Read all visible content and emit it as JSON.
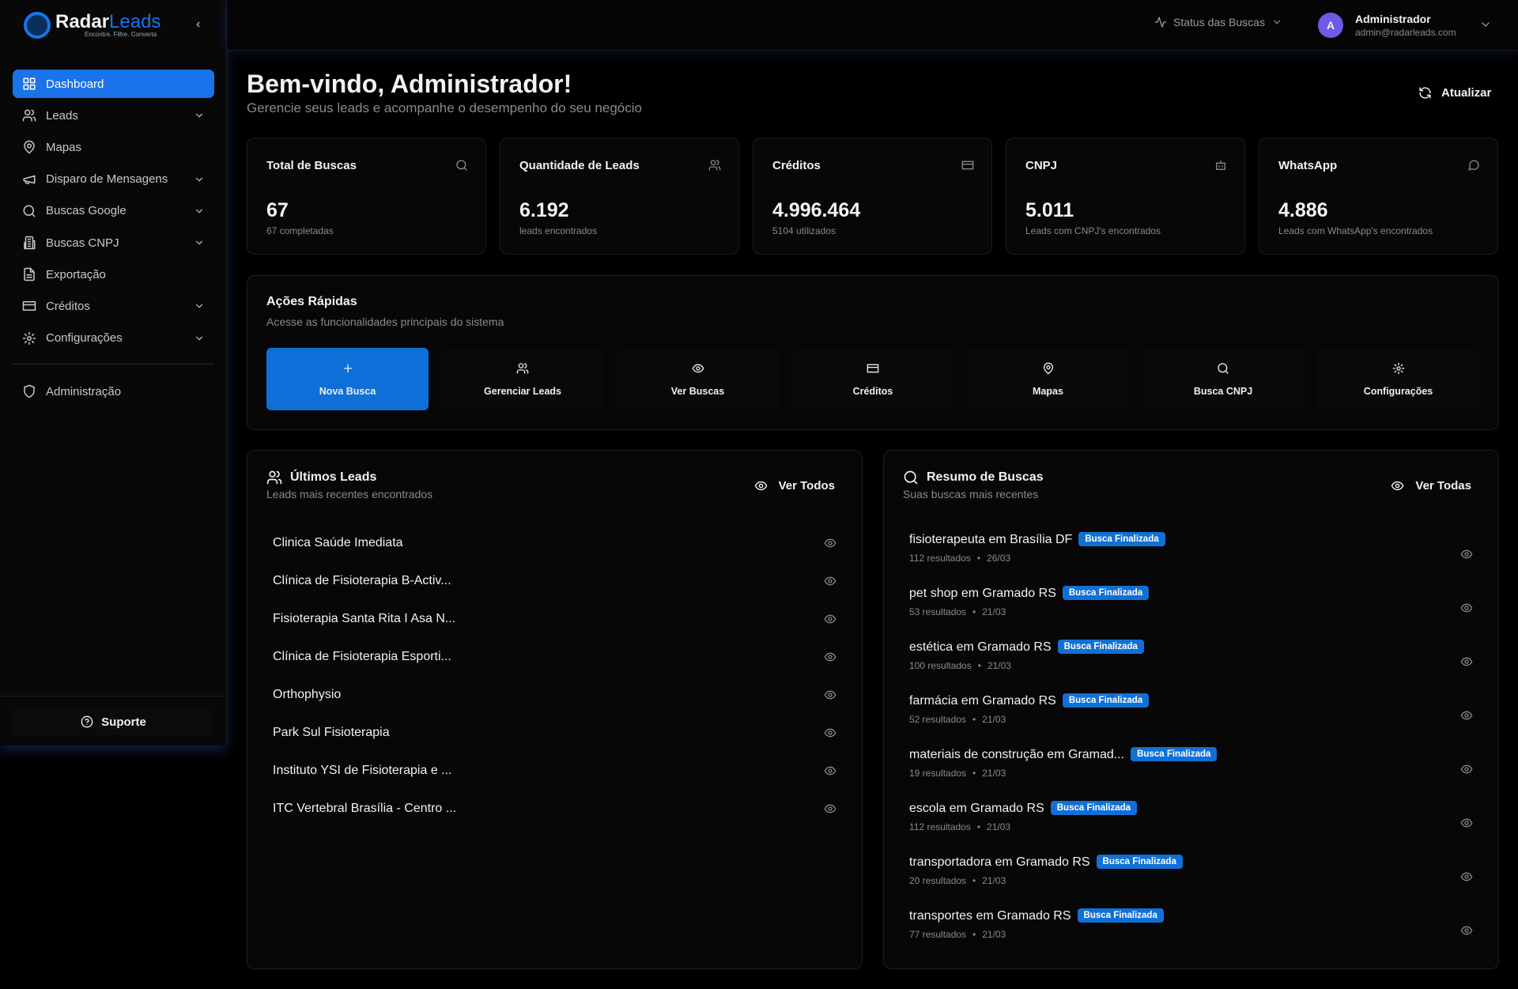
{
  "brand": {
    "name_a": "Radar",
    "name_b": "Leads",
    "tagline": "Encontre. Filtre. Converta"
  },
  "sidebar": {
    "items": [
      "Dashboard",
      "Leads",
      "Mapas",
      "Disparo de Mensagens",
      "Buscas Google",
      "Buscas CNPJ",
      "Exportação",
      "Créditos",
      "Configurações"
    ],
    "admin": "Administração",
    "support": "Suporte"
  },
  "header": {
    "status": "Status das Buscas",
    "user_initial": "A",
    "user_name": "Administrador",
    "user_email": "admin@radarleads.com"
  },
  "welcome": {
    "title": "Bem-vindo, Administrador!",
    "subtitle": "Gerencie seus leads e acompanhe o desempenho do seu negócio",
    "refresh": "Atualizar"
  },
  "stats": [
    {
      "label": "Total de Buscas",
      "value": "67",
      "note": "67 completadas"
    },
    {
      "label": "Quantidade de Leads",
      "value": "6.192",
      "note": "leads encontrados"
    },
    {
      "label": "Créditos",
      "value": "4.996.464",
      "note": "5104 utilizados"
    },
    {
      "label": "CNPJ",
      "value": "5.011",
      "note": "Leads com CNPJ's encontrados"
    },
    {
      "label": "WhatsApp",
      "value": "4.886",
      "note": "Leads com WhatsApp's encontrados"
    }
  ],
  "quick_actions": {
    "title": "Ações Rápidas",
    "subtitle": "Acesse as funcionalidades principais do sistema",
    "items": [
      "Nova Busca",
      "Gerenciar Leads",
      "Ver Buscas",
      "Créditos",
      "Mapas",
      "Busca CNPJ",
      "Configurações"
    ]
  },
  "latest_leads": {
    "title": "Últimos Leads",
    "subtitle": "Leads mais recentes encontrados",
    "action": "Ver Todos",
    "items": [
      "Clinica Saúde Imediata",
      "Clínica de Fisioterapia B-Activ...",
      "Fisioterapia Santa Rita I Asa N...",
      "Clínica de Fisioterapia Esporti...",
      "Orthophysio",
      "Park Sul Fisioterapia",
      "Instituto YSI de Fisioterapia e ...",
      "ITC Vertebral Brasília - Centro ..."
    ]
  },
  "search_summary": {
    "title": "Resumo de Buscas",
    "subtitle": "Suas buscas mais recentes",
    "action": "Ver Todas",
    "items": [
      {
        "query": "fisioterapeuta em Brasília DF",
        "status": "Busca Finalizada",
        "results": "112 resultados",
        "date": "26/03"
      },
      {
        "query": "pet shop em Gramado RS",
        "status": "Busca Finalizada",
        "results": "53 resultados",
        "date": "21/03"
      },
      {
        "query": "estética em Gramado RS",
        "status": "Busca Finalizada",
        "results": "100 resultados",
        "date": "21/03"
      },
      {
        "query": "farmácia em Gramado RS",
        "status": "Busca Finalizada",
        "results": "52 resultados",
        "date": "21/03"
      },
      {
        "query": "materiais de construção em Gramad...",
        "status": "Busca Finalizada",
        "results": "19 resultados",
        "date": "21/03"
      },
      {
        "query": "escola em Gramado RS",
        "status": "Busca Finalizada",
        "results": "112 resultados",
        "date": "21/03"
      },
      {
        "query": "transportadora em Gramado RS",
        "status": "Busca Finalizada",
        "results": "20 resultados",
        "date": "21/03"
      },
      {
        "query": "transportes em Gramado RS",
        "status": "Busca Finalizada",
        "results": "77 resultados",
        "date": "21/03"
      }
    ]
  }
}
